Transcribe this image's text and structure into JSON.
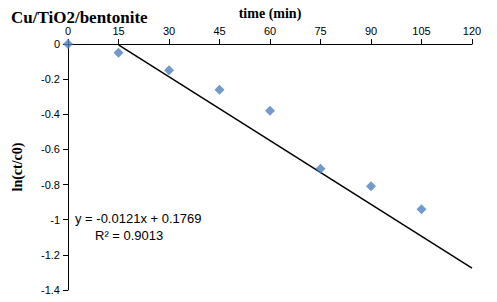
{
  "chart_data": {
    "type": "scatter",
    "title": "Cu/TiO2/bentonite",
    "x_label": "time (min)",
    "y_label": "ln(ct/c0)",
    "annotations": [
      "y = -0.0121x + 0.1769",
      "R² = 0.9013"
    ],
    "series": [
      {
        "type": "scatter",
        "marker": "diamond",
        "color": "#4f81bd",
        "x": [
          0,
          15,
          30,
          45,
          60,
          75,
          90,
          105
        ],
        "values": [
          0,
          -0.05,
          -0.15,
          -0.26,
          -0.38,
          -0.71,
          -0.81,
          -0.94
        ]
      },
      {
        "type": "line",
        "line_style": "solid",
        "color": "#000000",
        "x": [
          15,
          120
        ],
        "values": [
          -0.005,
          -1.275
        ]
      }
    ],
    "xlim": [
      0,
      120
    ],
    "xticks": [
      0,
      15,
      30,
      45,
      60,
      75,
      90,
      105,
      120
    ],
    "ylim": [
      -1.4,
      0
    ],
    "yticks": [
      0,
      -0.2,
      -0.4,
      -0.6,
      -0.8,
      -1,
      -1.2,
      -1.4
    ],
    "grid": false
  }
}
